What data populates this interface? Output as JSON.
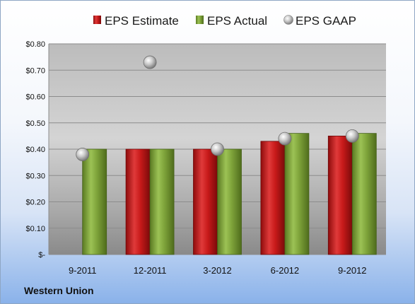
{
  "company": "Western Union",
  "chart_data": {
    "type": "bar",
    "title": "",
    "xlabel": "",
    "ylabel": "",
    "categories": [
      "9-2011",
      "12-2011",
      "3-2012",
      "6-2012",
      "9-2012"
    ],
    "series": [
      {
        "name": "EPS Estimate",
        "type": "bar",
        "color": "#cc1f1f",
        "values": [
          null,
          0.4,
          0.4,
          0.43,
          0.45
        ]
      },
      {
        "name": "EPS Actual",
        "type": "bar",
        "color": "#7ea33a",
        "values": [
          0.4,
          0.4,
          0.4,
          0.46,
          0.46
        ]
      },
      {
        "name": "EPS GAAP",
        "type": "scatter",
        "color": "#b8b8b8",
        "values": [
          0.38,
          0.73,
          0.4,
          0.44,
          0.45
        ]
      }
    ],
    "ylim": [
      0,
      0.8
    ],
    "yticks": [
      0,
      0.1,
      0.2,
      0.3,
      0.4,
      0.5,
      0.6,
      0.7,
      0.8
    ],
    "ytick_labels": [
      "$-",
      "$0.10",
      "$0.20",
      "$0.30",
      "$0.40",
      "$0.50",
      "$0.60",
      "$0.70",
      "$0.80"
    ],
    "grid": true,
    "legend": "top"
  }
}
